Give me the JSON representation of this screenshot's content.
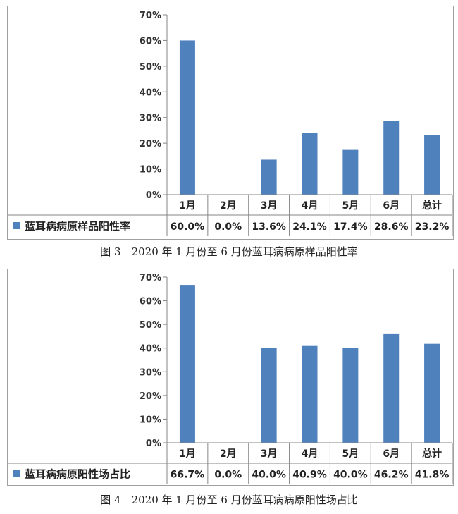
{
  "figures": [
    {
      "caption": "图 3　2020 年 1 月份至 6 月份蓝耳病病原样品阳性率"
    },
    {
      "caption": "图 4　2020 年 1 月份至 6 月份蓝耳病病原阳性场占比"
    }
  ],
  "chart_data": [
    {
      "type": "bar",
      "categories": [
        "1月",
        "2月",
        "3月",
        "4月",
        "5月",
        "6月",
        "总计"
      ],
      "series": [
        {
          "name": "蓝耳病病原样品阳性率",
          "values": [
            60.0,
            0.0,
            13.6,
            24.1,
            17.4,
            28.6,
            23.2
          ],
          "labels": [
            "60.0%",
            "0.0%",
            "13.6%",
            "24.1%",
            "17.4%",
            "28.6%",
            "23.2%"
          ]
        }
      ],
      "yticks": [
        "0%",
        "10%",
        "20%",
        "30%",
        "40%",
        "50%",
        "60%",
        "70%"
      ],
      "ylim": [
        0,
        70
      ],
      "grid": false,
      "legend": "data-table",
      "bar_color": "#4f81bd"
    },
    {
      "type": "bar",
      "categories": [
        "1月",
        "2月",
        "3月",
        "4月",
        "5月",
        "6月",
        "总计"
      ],
      "series": [
        {
          "name": "蓝耳病病原阳性场占比",
          "values": [
            66.7,
            0.0,
            40.0,
            40.9,
            40.0,
            46.2,
            41.8
          ],
          "labels": [
            "66.7%",
            "0.0%",
            "40.0%",
            "40.9%",
            "40.0%",
            "46.2%",
            "41.8%"
          ]
        }
      ],
      "yticks": [
        "0%",
        "10%",
        "20%",
        "30%",
        "40%",
        "50%",
        "60%",
        "70%"
      ],
      "ylim": [
        0,
        70
      ],
      "grid": false,
      "legend": "data-table",
      "bar_color": "#4f81bd"
    }
  ]
}
